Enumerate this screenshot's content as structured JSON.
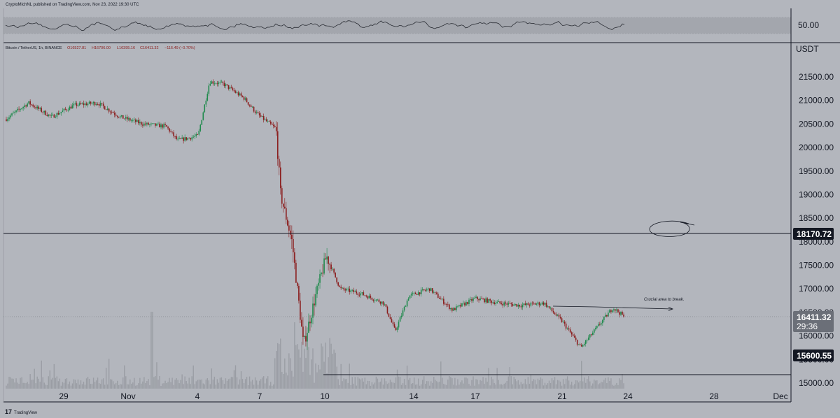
{
  "header": {
    "published": "CryptoMichNL published on TradingView.com, Nov 23, 2022 19:30 UTC"
  },
  "legend": {
    "symbol": "Bitcoin / TetherUS, 1h, BINANCE",
    "open": "O16527.81",
    "high": "H16706.00",
    "low": "L16395.16",
    "close": "C16411.32",
    "change": "−116.49 (−0.70%)"
  },
  "rsi_panel": {
    "level_label": "50.00"
  },
  "price_axis": {
    "currency": "USDT",
    "ticks": [
      "21500.00",
      "21000.00",
      "20500.00",
      "20000.00",
      "19500.00",
      "19000.00",
      "18500.00",
      "18000.00",
      "17500.00",
      "17000.00",
      "16500.00",
      "16000.00",
      "15500.00",
      "15000.00"
    ]
  },
  "time_axis": {
    "ticks": [
      "29",
      "Nov",
      "4",
      "7",
      "10",
      "14",
      "17",
      "21",
      "24",
      "28",
      "Dec"
    ]
  },
  "price_tags": {
    "resistance": "18170.72",
    "current": "16411.32",
    "countdown": "29:36",
    "support": "15600.55"
  },
  "annotation": {
    "text": "Crucial area to break."
  },
  "footer": {
    "brand": "TradingView"
  },
  "colors": {
    "background": "#b3b6bd",
    "candle_up": "#1f8a4c",
    "candle_down": "#8b1d1d",
    "line": "#131722",
    "tag_bg": "#131722",
    "rsi_band": "#a3a6ad"
  },
  "chart_data": {
    "type": "candlestick",
    "symbol": "BTCUSDT",
    "timeframe": "1h",
    "ylim": [
      14900,
      22050
    ],
    "horizontal_levels": [
      18170.72,
      15600.55
    ],
    "current_price": 16411.32,
    "annotation_line_level": 16620,
    "path_keypoints": [
      {
        "day": 27.0,
        "price": 20600
      },
      {
        "day": 28.0,
        "price": 20950
      },
      {
        "day": 29.0,
        "price": 20650
      },
      {
        "day": 30.0,
        "price": 20900
      },
      {
        "day": 31.0,
        "price": 20950
      },
      {
        "day": 32.0,
        "price": 20650
      },
      {
        "day": 33.0,
        "price": 20500
      },
      {
        "day": 34.0,
        "price": 20450
      },
      {
        "day": 34.5,
        "price": 20150
      },
      {
        "day": 35.4,
        "price": 20250
      },
      {
        "day": 35.9,
        "price": 21400
      },
      {
        "day": 36.5,
        "price": 21350
      },
      {
        "day": 37.4,
        "price": 21050
      },
      {
        "day": 38.0,
        "price": 20700
      },
      {
        "day": 38.8,
        "price": 20400
      },
      {
        "day": 39.0,
        "price": 19000
      },
      {
        "day": 39.5,
        "price": 18000
      },
      {
        "day": 40.0,
        "price": 15800
      },
      {
        "day": 40.5,
        "price": 16800
      },
      {
        "day": 41.0,
        "price": 17700
      },
      {
        "day": 41.6,
        "price": 17000
      },
      {
        "day": 42.5,
        "price": 16900
      },
      {
        "day": 43.5,
        "price": 16700
      },
      {
        "day": 44.0,
        "price": 16100
      },
      {
        "day": 44.6,
        "price": 16850
      },
      {
        "day": 45.5,
        "price": 17000
      },
      {
        "day": 46.5,
        "price": 16550
      },
      {
        "day": 47.5,
        "price": 16800
      },
      {
        "day": 48.5,
        "price": 16700
      },
      {
        "day": 49.5,
        "price": 16650
      },
      {
        "day": 50.5,
        "price": 16700
      },
      {
        "day": 51.3,
        "price": 16300
      },
      {
        "day": 52.1,
        "price": 15750
      },
      {
        "day": 53.0,
        "price": 16300
      },
      {
        "day": 53.5,
        "price": 16600
      },
      {
        "day": 54.0,
        "price": 16411.32
      }
    ]
  }
}
